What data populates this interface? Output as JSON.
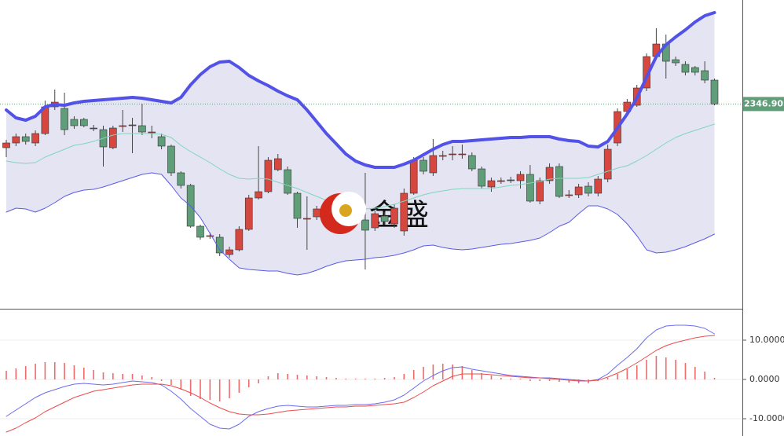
{
  "chart_data": [
    {
      "type": "candlestick",
      "ylim": [
        2281.75,
        2380
      ],
      "up_color": "#d6473f",
      "down_color": "#5f9e78",
      "band_fill": "#e4e4f3",
      "watermark": "金盛",
      "price_tag": {
        "value": 2346.9,
        "label": "2346.90"
      },
      "price_tag_color": "#5f9e78",
      "candles": [
        [
          2333,
          2335.5,
          2330,
          2334.5
        ],
        [
          2334.5,
          2337.5,
          2333.5,
          2336.5
        ],
        [
          2336.5,
          2337.5,
          2334,
          2335
        ],
        [
          2334.5,
          2338.5,
          2333.5,
          2337.5
        ],
        [
          2337.5,
          2348,
          2337,
          2346
        ],
        [
          2346,
          2351.5,
          2345,
          2347.5
        ],
        [
          2345.5,
          2350.5,
          2337,
          2338.75
        ],
        [
          2342,
          2343,
          2339,
          2340
        ],
        [
          2342,
          2342.5,
          2339.5,
          2340
        ],
        [
          2339.25,
          2340.25,
          2338.25,
          2339.25
        ],
        [
          2338.75,
          2340,
          2327,
          2333.25
        ],
        [
          2333,
          2340,
          2332.5,
          2339.25
        ],
        [
          2340,
          2345,
          2338,
          2340
        ],
        [
          2340.25,
          2342.5,
          2331.25,
          2340.25
        ],
        [
          2340,
          2347,
          2337,
          2338
        ],
        [
          2338,
          2340,
          2336,
          2338
        ],
        [
          2336.5,
          2337.5,
          2332.5,
          2333.5
        ],
        [
          2333.5,
          2334,
          2324,
          2325
        ],
        [
          2325,
          2325.5,
          2320,
          2321
        ],
        [
          2321,
          2321.5,
          2307.5,
          2308
        ],
        [
          2308,
          2308.5,
          2303.75,
          2304.5
        ],
        [
          2305,
          2306,
          2304,
          2305
        ],
        [
          2304.5,
          2305.5,
          2298.5,
          2299.5
        ],
        [
          2299,
          2301.5,
          2298,
          2300.5
        ],
        [
          2300.5,
          2308,
          2300,
          2307
        ],
        [
          2307,
          2318,
          2306.5,
          2317
        ],
        [
          2317,
          2333.5,
          2316.5,
          2319
        ],
        [
          2319,
          2330,
          2318.5,
          2329
        ],
        [
          2326,
          2331,
          2325.5,
          2329.5
        ],
        [
          2326,
          2327,
          2318,
          2318.5
        ],
        [
          2318.5,
          2319,
          2307.5,
          2310.5
        ],
        [
          2310.5,
          2317.5,
          2300.5,
          2310.5
        ],
        [
          2311,
          2314.5,
          2310,
          2313.5
        ],
        [
          2315,
          2316,
          2311.5,
          2312.5
        ],
        [
          2313.5,
          2315.5,
          2312.5,
          2314.5
        ],
        [
          2313.75,
          2314.5,
          2308.5,
          2309.5
        ],
        [
          2313,
          2314,
          2310.25,
          2311.25
        ],
        [
          2310,
          2325,
          2294.25,
          2306.75
        ],
        [
          2307.5,
          2313,
          2306.5,
          2312
        ],
        [
          2311.25,
          2312.5,
          2308.5,
          2309.5
        ],
        [
          2308.75,
          2315,
          2307.5,
          2313.75
        ],
        [
          2306.5,
          2320,
          2305,
          2318.5
        ],
        [
          2318.5,
          2330,
          2318,
          2329
        ],
        [
          2329,
          2330,
          2324.5,
          2325.5
        ],
        [
          2325,
          2335.75,
          2324,
          2330.5
        ],
        [
          2330.5,
          2332,
          2329,
          2330.5
        ],
        [
          2331,
          2333.5,
          2329,
          2331
        ],
        [
          2331,
          2334,
          2329.5,
          2331
        ],
        [
          2330.5,
          2331.5,
          2325.5,
          2326.25
        ],
        [
          2326.25,
          2327,
          2320,
          2320.75
        ],
        [
          2320.5,
          2323.5,
          2319,
          2322.5
        ],
        [
          2322.5,
          2323.5,
          2321.5,
          2322.5
        ],
        [
          2322.75,
          2323.75,
          2321.75,
          2322.75
        ],
        [
          2322.5,
          2325.5,
          2320,
          2324.5
        ],
        [
          2324.5,
          2327.5,
          2315.5,
          2316
        ],
        [
          2316,
          2323.5,
          2315,
          2322.5
        ],
        [
          2322.5,
          2328,
          2321.5,
          2326.75
        ],
        [
          2327,
          2328,
          2317,
          2317.5
        ],
        [
          2318,
          2319.5,
          2317,
          2318
        ],
        [
          2318,
          2321.5,
          2317,
          2320.5
        ],
        [
          2320.75,
          2322,
          2317.5,
          2318.5
        ],
        [
          2318.5,
          2324,
          2317.5,
          2323
        ],
        [
          2323,
          2334,
          2322,
          2332.5
        ],
        [
          2334.5,
          2345.5,
          2333.5,
          2344.5
        ],
        [
          2344.5,
          2348.5,
          2343.5,
          2347.5
        ],
        [
          2346.5,
          2353,
          2346,
          2352
        ],
        [
          2352,
          2363,
          2351,
          2362
        ],
        [
          2362,
          2371,
          2361,
          2366
        ],
        [
          2366,
          2369,
          2355,
          2360.5
        ],
        [
          2361,
          2362,
          2359,
          2360
        ],
        [
          2359.5,
          2360.5,
          2356,
          2357
        ],
        [
          2358.5,
          2359,
          2356,
          2357
        ],
        [
          2357.5,
          2360.5,
          2353.5,
          2354.5
        ],
        [
          2354.5,
          2355,
          2346.5,
          2346.9
        ]
      ],
      "series": [
        {
          "color": "#5252e8",
          "width": 4,
          "values": [
            2345,
            2342.5,
            2341.75,
            2343,
            2346,
            2346.75,
            2346.5,
            2347.25,
            2347.75,
            2348,
            2348.25,
            2348.5,
            2348.75,
            2349,
            2348.75,
            2348.25,
            2347.75,
            2347.25,
            2349,
            2353,
            2356.25,
            2358.75,
            2360.25,
            2360.5,
            2358.5,
            2356,
            2354.25,
            2352.75,
            2351,
            2349.5,
            2348.25,
            2345,
            2341.25,
            2337.5,
            2334.25,
            2331,
            2328.75,
            2327.5,
            2326.75,
            2326.75,
            2326.75,
            2327.75,
            2329,
            2330.75,
            2332.5,
            2334,
            2335,
            2335,
            2335.25,
            2335.5,
            2335.75,
            2336,
            2336.25,
            2336.25,
            2336.5,
            2336.5,
            2336.5,
            2335.75,
            2335.25,
            2335,
            2333.5,
            2333.25,
            2335,
            2339.25,
            2343.75,
            2348.75,
            2355.5,
            2362,
            2365.75,
            2368.25,
            2370.5,
            2373,
            2375,
            2376
          ]
        },
        {
          "color": "#7fd6bd",
          "width": 1,
          "values": [
            2328.75,
            2328.25,
            2328,
            2328.25,
            2330,
            2331.25,
            2332.5,
            2333.75,
            2334.25,
            2335,
            2336,
            2337,
            2337.5,
            2337.5,
            2337.5,
            2337.5,
            2337.25,
            2336.25,
            2333.75,
            2331.75,
            2330,
            2328.25,
            2326.25,
            2324.5,
            2323.25,
            2323,
            2323.25,
            2323,
            2322,
            2321,
            2320,
            2318.75,
            2317.5,
            2316.25,
            2315,
            2314.25,
            2313.75,
            2313.5,
            2313.75,
            2314.25,
            2315,
            2316,
            2317,
            2318,
            2318.75,
            2319.25,
            2319.75,
            2320,
            2320,
            2320,
            2320,
            2320.5,
            2321,
            2321.25,
            2321.75,
            2322.25,
            2323,
            2323.25,
            2323.25,
            2323.25,
            2323.5,
            2324.5,
            2325.5,
            2326.5,
            2327.25,
            2328.75,
            2330.5,
            2332.5,
            2334.5,
            2336.25,
            2337.5,
            2338.5,
            2339.5,
            2340.5
          ]
        },
        {
          "color": "#5a5ae8",
          "width": 1,
          "values": [
            2312.5,
            2313.75,
            2313.5,
            2312.5,
            2313.75,
            2315.5,
            2317.5,
            2318.75,
            2319.5,
            2319.75,
            2320.5,
            2321.5,
            2322.5,
            2323.5,
            2324.5,
            2325,
            2324.5,
            2321,
            2317,
            2314.5,
            2310.75,
            2305.75,
            2300.5,
            2297.5,
            2294.75,
            2294.25,
            2294,
            2293.75,
            2293.75,
            2293,
            2292.5,
            2293,
            2294,
            2295.25,
            2296.25,
            2297,
            2297.25,
            2297.5,
            2298,
            2298.25,
            2298.75,
            2299.5,
            2300.5,
            2301.75,
            2302,
            2301.25,
            2300.75,
            2300.5,
            2300.75,
            2301.25,
            2301.75,
            2302.25,
            2302.5,
            2303,
            2303.5,
            2304.25,
            2306,
            2308,
            2309.25,
            2312,
            2314.5,
            2314.5,
            2313.5,
            2311.75,
            2308.75,
            2305,
            2300.5,
            2299.5,
            2299.75,
            2300.5,
            2301.5,
            2302.75,
            2304,
            2305.5
          ]
        }
      ]
    },
    {
      "type": "macd",
      "ylim": [
        -14.4,
        17.6
      ],
      "yticks": [
        {
          "value": 10,
          "label": "10.0000"
        },
        {
          "value": 0,
          "label": "0.0000"
        },
        {
          "value": -10,
          "label": "-10.0000"
        }
      ],
      "histogram_color": "#f06a6a",
      "histogram": [
        2.2,
        2.8,
        3.4,
        4,
        4.4,
        4.4,
        4.2,
        3.6,
        3,
        2.4,
        1.8,
        1.6,
        1.4,
        1.4,
        1,
        0.6,
        -0.4,
        -1.4,
        -2.6,
        -4.2,
        -5,
        -5.2,
        -5.6,
        -4.8,
        -3.4,
        -2,
        -1,
        0.8,
        1.6,
        1.4,
        1.2,
        1,
        0.8,
        0.6,
        0.4,
        0.2,
        0.2,
        0.2,
        0.2,
        0.4,
        0.6,
        1.4,
        2.4,
        3.2,
        3.8,
        4,
        3.8,
        3.4,
        2.4,
        1.6,
        1,
        0.4,
        0.2,
        0.2,
        -0.4,
        -0.4,
        -0.4,
        -0.6,
        -0.8,
        -1,
        -1,
        -0.4,
        0.4,
        1.4,
        2.6,
        3.6,
        5,
        6,
        5.6,
        5,
        4.2,
        3.2,
        2,
        0.4
      ],
      "series": [
        {
          "color": "#6b6bf0",
          "width": 1,
          "values": [
            -9.4,
            -7.8,
            -6.2,
            -4.6,
            -3.4,
            -2.6,
            -1.8,
            -1.2,
            -1,
            -1.2,
            -1.4,
            -1.2,
            -0.8,
            -0.4,
            -0.6,
            -0.8,
            -1.4,
            -3,
            -5,
            -7.4,
            -9.4,
            -11.4,
            -12.4,
            -12.6,
            -11.4,
            -9.4,
            -8.2,
            -7.4,
            -6.8,
            -6.6,
            -6.8,
            -7,
            -7,
            -6.8,
            -6.6,
            -6.6,
            -6.4,
            -6.4,
            -6.2,
            -5.8,
            -5.2,
            -4,
            -2.2,
            -0.4,
            1,
            2.2,
            3,
            3.2,
            2.6,
            2.2,
            1.8,
            1.4,
            1,
            0.8,
            0.6,
            0.4,
            0.4,
            0.2,
            0,
            -0.2,
            -0.4,
            0,
            1.4,
            3.6,
            5.6,
            7.8,
            10.6,
            12.6,
            13.6,
            13.8,
            13.8,
            13.6,
            13,
            11.6
          ]
        },
        {
          "color": "#ee4b4b",
          "width": 1,
          "values": [
            -13.4,
            -12.4,
            -11,
            -9.8,
            -8.2,
            -7,
            -5.8,
            -4.6,
            -3.8,
            -3,
            -2.6,
            -2.2,
            -1.8,
            -1.4,
            -1.2,
            -1.2,
            -1.2,
            -1.6,
            -2.4,
            -3.4,
            -4.6,
            -6,
            -7.2,
            -8.2,
            -8.8,
            -9,
            -9,
            -8.8,
            -8.4,
            -8,
            -7.8,
            -7.6,
            -7.4,
            -7.2,
            -7,
            -7,
            -6.8,
            -6.8,
            -6.6,
            -6.4,
            -6.2,
            -5.8,
            -4.6,
            -3.2,
            -1.6,
            -0.4,
            0.8,
            1.4,
            1.4,
            1.4,
            1.2,
            1,
            0.8,
            0.6,
            0.4,
            0.4,
            0.2,
            0,
            -0.2,
            -0.4,
            -0.4,
            -0.2,
            0.6,
            1.6,
            2.8,
            4.2,
            5.8,
            7.4,
            8.6,
            9.4,
            10,
            10.6,
            11,
            11.2
          ]
        }
      ]
    }
  ]
}
